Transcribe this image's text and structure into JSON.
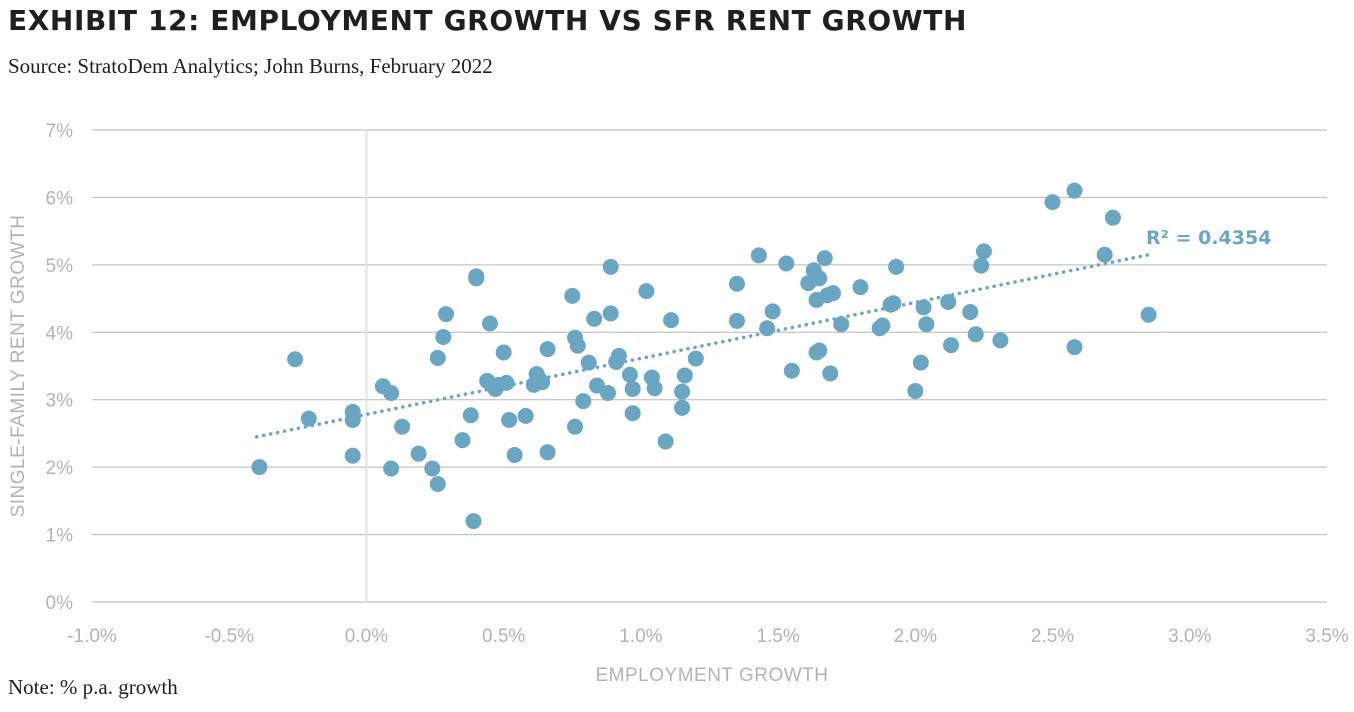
{
  "title": "EXHIBIT 12: EMPLOYMENT GROWTH VS SFR RENT GROWTH",
  "subtitle": "Source: StratoDem Analytics; John Burns, February 2022",
  "note": "Note: % p.a. growth",
  "colors": {
    "point": "#6aa6c1",
    "trendline": "#6aa6c1",
    "grid": "#b7b7b7",
    "zero_line": "#e2e2e2",
    "r2_text": "#6aa6c1"
  },
  "chart_data": {
    "type": "scatter",
    "xlabel": "EMPLOYMENT GROWTH",
    "ylabel": "SINGLE-FAMILY RENT GROWTH",
    "xlim": [
      -1.0,
      3.5
    ],
    "ylim": [
      0,
      7
    ],
    "x_ticks": [
      -1.0,
      -0.5,
      0.0,
      0.5,
      1.0,
      1.5,
      2.0,
      2.5,
      3.0,
      3.5
    ],
    "x_tick_labels": [
      "-1.0%",
      "-0.5%",
      "0.0%",
      "0.5%",
      "1.0%",
      "1.5%",
      "2.0%",
      "2.5%",
      "3.0%",
      "3.5%"
    ],
    "y_ticks": [
      0,
      1,
      2,
      3,
      4,
      5,
      6,
      7
    ],
    "y_tick_labels": [
      "0%",
      "1%",
      "2%",
      "3%",
      "4%",
      "5%",
      "6%",
      "7%"
    ],
    "grid": "horizontal",
    "legend": "none",
    "trendline": {
      "type": "linear",
      "x": [
        -0.4,
        2.85
      ],
      "y": [
        2.45,
        5.15
      ],
      "style": "dotted"
    },
    "annotation": "R² = 0.4354",
    "points": [
      [
        -0.39,
        2.0
      ],
      [
        -0.26,
        3.6
      ],
      [
        -0.21,
        2.72
      ],
      [
        -0.05,
        2.82
      ],
      [
        -0.05,
        2.7
      ],
      [
        -0.05,
        2.17
      ],
      [
        0.06,
        3.2
      ],
      [
        0.09,
        3.1
      ],
      [
        0.09,
        1.98
      ],
      [
        0.13,
        2.6
      ],
      [
        0.19,
        2.2
      ],
      [
        0.24,
        1.98
      ],
      [
        0.26,
        1.75
      ],
      [
        0.26,
        3.62
      ],
      [
        0.28,
        3.93
      ],
      [
        0.29,
        4.27
      ],
      [
        0.35,
        2.4
      ],
      [
        0.38,
        2.77
      ],
      [
        0.39,
        1.2
      ],
      [
        0.4,
        4.8
      ],
      [
        0.4,
        4.83
      ],
      [
        0.44,
        3.28
      ],
      [
        0.45,
        4.13
      ],
      [
        0.47,
        3.16
      ],
      [
        0.48,
        3.22
      ],
      [
        0.5,
        3.7
      ],
      [
        0.51,
        3.25
      ],
      [
        0.52,
        2.7
      ],
      [
        0.54,
        2.18
      ],
      [
        0.58,
        2.76
      ],
      [
        0.61,
        3.22
      ],
      [
        0.62,
        3.38
      ],
      [
        0.63,
        3.3
      ],
      [
        0.64,
        3.26
      ],
      [
        0.66,
        2.22
      ],
      [
        0.66,
        3.75
      ],
      [
        0.75,
        4.54
      ],
      [
        0.76,
        3.92
      ],
      [
        0.76,
        2.6
      ],
      [
        0.77,
        3.8
      ],
      [
        0.79,
        2.98
      ],
      [
        0.81,
        3.55
      ],
      [
        0.83,
        4.2
      ],
      [
        0.84,
        3.21
      ],
      [
        0.88,
        3.1
      ],
      [
        0.89,
        4.28
      ],
      [
        0.89,
        4.97
      ],
      [
        0.91,
        3.56
      ],
      [
        0.92,
        3.65
      ],
      [
        0.96,
        3.37
      ],
      [
        0.97,
        3.16
      ],
      [
        0.97,
        2.8
      ],
      [
        1.02,
        4.61
      ],
      [
        1.04,
        3.33
      ],
      [
        1.05,
        3.17
      ],
      [
        1.09,
        2.38
      ],
      [
        1.11,
        4.18
      ],
      [
        1.15,
        3.12
      ],
      [
        1.15,
        2.88
      ],
      [
        1.16,
        3.36
      ],
      [
        1.2,
        3.61
      ],
      [
        1.35,
        4.72
      ],
      [
        1.35,
        4.17
      ],
      [
        1.43,
        5.14
      ],
      [
        1.46,
        4.06
      ],
      [
        1.48,
        4.31
      ],
      [
        1.53,
        5.02
      ],
      [
        1.55,
        3.43
      ],
      [
        1.61,
        4.73
      ],
      [
        1.63,
        4.92
      ],
      [
        1.64,
        3.7
      ],
      [
        1.64,
        4.48
      ],
      [
        1.65,
        4.8
      ],
      [
        1.65,
        3.73
      ],
      [
        1.67,
        5.1
      ],
      [
        1.68,
        4.55
      ],
      [
        1.69,
        3.39
      ],
      [
        1.7,
        4.58
      ],
      [
        1.73,
        4.12
      ],
      [
        1.8,
        4.67
      ],
      [
        1.87,
        4.06
      ],
      [
        1.88,
        4.1
      ],
      [
        1.91,
        4.41
      ],
      [
        1.92,
        4.43
      ],
      [
        1.93,
        4.97
      ],
      [
        2.0,
        3.13
      ],
      [
        2.02,
        3.55
      ],
      [
        2.03,
        4.37
      ],
      [
        2.04,
        4.12
      ],
      [
        2.12,
        4.45
      ],
      [
        2.13,
        3.81
      ],
      [
        2.2,
        4.3
      ],
      [
        2.22,
        3.97
      ],
      [
        2.24,
        4.99
      ],
      [
        2.25,
        5.2
      ],
      [
        2.31,
        3.88
      ],
      [
        2.5,
        5.93
      ],
      [
        2.58,
        6.1
      ],
      [
        2.58,
        3.78
      ],
      [
        2.69,
        5.15
      ],
      [
        2.72,
        5.7
      ],
      [
        2.85,
        4.26
      ]
    ]
  }
}
